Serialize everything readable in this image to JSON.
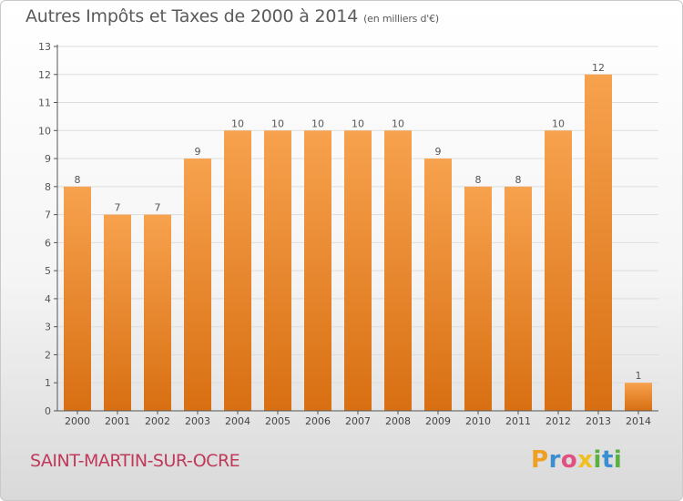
{
  "title": "Autres Impôts et Taxes de 2000 à 2014",
  "subtitle": "(en milliers d'€)",
  "commune": "SAINT-MARTIN-SUR-OCRE",
  "logo": {
    "text": "Proxiti",
    "letters": [
      "P",
      "r",
      "o",
      "x",
      "i",
      "t",
      "i"
    ],
    "colors": [
      "#f0a020",
      "#3a8fd0",
      "#e05080",
      "#f0c020",
      "#5ab040",
      "#3a8fd0",
      "#5ab040"
    ]
  },
  "colors": {
    "bar_top": "#f7a24e",
    "bar_bottom": "#d86f12",
    "axis": "#555555",
    "grid": "#dddddd",
    "commune": "#c0395a"
  },
  "chart_data": {
    "type": "bar",
    "title": "Autres Impôts et Taxes de 2000 à 2014",
    "categories": [
      "2000",
      "2001",
      "2002",
      "2003",
      "2004",
      "2005",
      "2006",
      "2007",
      "2008",
      "2009",
      "2010",
      "2011",
      "2012",
      "2013",
      "2014"
    ],
    "values": [
      8,
      7,
      7,
      9,
      10,
      10,
      10,
      10,
      10,
      9,
      8,
      8,
      10,
      12,
      1
    ],
    "yticks": [
      0,
      1,
      2,
      3,
      4,
      5,
      6,
      7,
      8,
      9,
      10,
      11,
      12,
      13
    ],
    "ylim": [
      0,
      13
    ],
    "grid": true
  }
}
